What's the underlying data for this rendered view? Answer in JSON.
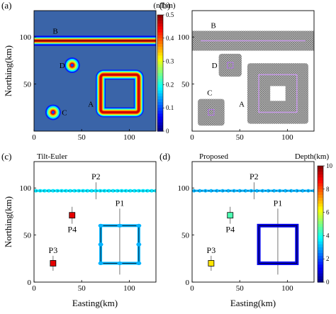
{
  "chart_data": [
    {
      "panel_label": "(a)",
      "type": "heatmap",
      "title": "",
      "xlabel": "",
      "ylabel": "Northing(km)",
      "xlim": [
        0,
        128
      ],
      "ylim": [
        0,
        128
      ],
      "xticks": [
        0,
        50,
        100
      ],
      "yticks": [
        50,
        100
      ],
      "background_color": "#3a64a8",
      "colorbar": {
        "title": "(nT/m)",
        "ticks": [
          0,
          0.1,
          0.2,
          0.3,
          0.4,
          0.5
        ],
        "tick_labels": [
          "0",
          "0.1",
          "0.2",
          "0.3",
          "0.4",
          "0.5"
        ]
      },
      "bodies": [
        {
          "label": "A",
          "shape": "square-frame",
          "x_range": [
            70,
            110
          ],
          "y_range": [
            20,
            60
          ]
        },
        {
          "label": "B",
          "shape": "horizontal-strip",
          "y": 96
        },
        {
          "label": "C",
          "shape": "circle",
          "x": 20,
          "y": 20
        },
        {
          "label": "D",
          "shape": "circle",
          "x": 40,
          "y": 70
        }
      ]
    },
    {
      "panel_label": "(b)",
      "type": "heatmap",
      "title": "",
      "xlabel": "",
      "ylabel": "",
      "xlim": [
        0,
        128
      ],
      "ylim": [
        0,
        128
      ],
      "xticks": [
        0,
        50,
        100
      ],
      "yticks": [
        50,
        100
      ],
      "bodies": [
        {
          "label": "A",
          "shape": "square-frame",
          "x_range": [
            70,
            110
          ],
          "y_range": [
            20,
            60
          ]
        },
        {
          "label": "B",
          "shape": "horizontal-strip",
          "y": 96
        },
        {
          "label": "C",
          "shape": "square",
          "x": 20,
          "y": 20
        },
        {
          "label": "D",
          "shape": "square",
          "x": 40,
          "y": 70
        }
      ]
    },
    {
      "panel_label": "(c)",
      "type": "scatter",
      "title": "Tilt-Euler",
      "xlabel": "Easting(km)",
      "ylabel": "Northing(km)",
      "xlim": [
        0,
        128
      ],
      "ylim": [
        0,
        128
      ],
      "xticks": [
        0,
        50,
        100
      ],
      "yticks": [
        0,
        50,
        100
      ],
      "profiles": [
        {
          "label": "P1",
          "x": [
            90,
            90
          ],
          "y": [
            8,
            78
          ]
        },
        {
          "label": "P2",
          "x": [
            65,
            65
          ],
          "y": [
            88,
            106
          ]
        },
        {
          "label": "P3",
          "x": [
            20,
            20
          ],
          "y": [
            12,
            28
          ]
        },
        {
          "label": "P4",
          "x": [
            40,
            40
          ],
          "y": [
            62,
            80
          ]
        }
      ],
      "solutions": [
        {
          "body": "B",
          "x_range": [
            2,
            128
          ],
          "y": 97,
          "depth_km": 3.5
        },
        {
          "body": "A",
          "square": [
            70,
            110,
            20,
            60
          ],
          "depth_km": 3.0
        },
        {
          "body": "C",
          "x": 20,
          "y": 20,
          "depth_km": 9.0
        },
        {
          "body": "D",
          "x": 40,
          "y": 71,
          "depth_km": 9.0
        }
      ]
    },
    {
      "panel_label": "(d)",
      "type": "scatter",
      "title": "Proposed",
      "xlabel": "Easting(km)",
      "ylabel": "",
      "xlim": [
        0,
        128
      ],
      "ylim": [
        0,
        128
      ],
      "xticks": [
        0,
        50,
        100
      ],
      "yticks": [
        0,
        50,
        100
      ],
      "colorbar": {
        "title": "Depth(km)",
        "ticks": [
          0,
          2,
          4,
          6,
          8,
          10
        ],
        "tick_labels": [
          "0",
          "2",
          "4",
          "6",
          "8",
          "10"
        ]
      },
      "profiles": [
        {
          "label": "P1",
          "x": [
            90,
            90
          ],
          "y": [
            8,
            78
          ]
        },
        {
          "label": "P2",
          "x": [
            65,
            65
          ],
          "y": [
            88,
            106
          ]
        },
        {
          "label": "P3",
          "x": [
            20,
            20
          ],
          "y": [
            12,
            28
          ]
        },
        {
          "label": "P4",
          "x": [
            40,
            40
          ],
          "y": [
            62,
            80
          ]
        }
      ],
      "solutions": [
        {
          "body": "B",
          "x_range": [
            2,
            128
          ],
          "y": 97,
          "depth_km": 3.0
        },
        {
          "body": "A",
          "square": [
            70,
            110,
            20,
            60
          ],
          "depth_km": 1.0
        },
        {
          "body": "C",
          "x": 20,
          "y": 20,
          "depth_km": 6.5
        },
        {
          "body": "D",
          "x": 40,
          "y": 71,
          "depth_km": 4.5
        }
      ]
    }
  ]
}
